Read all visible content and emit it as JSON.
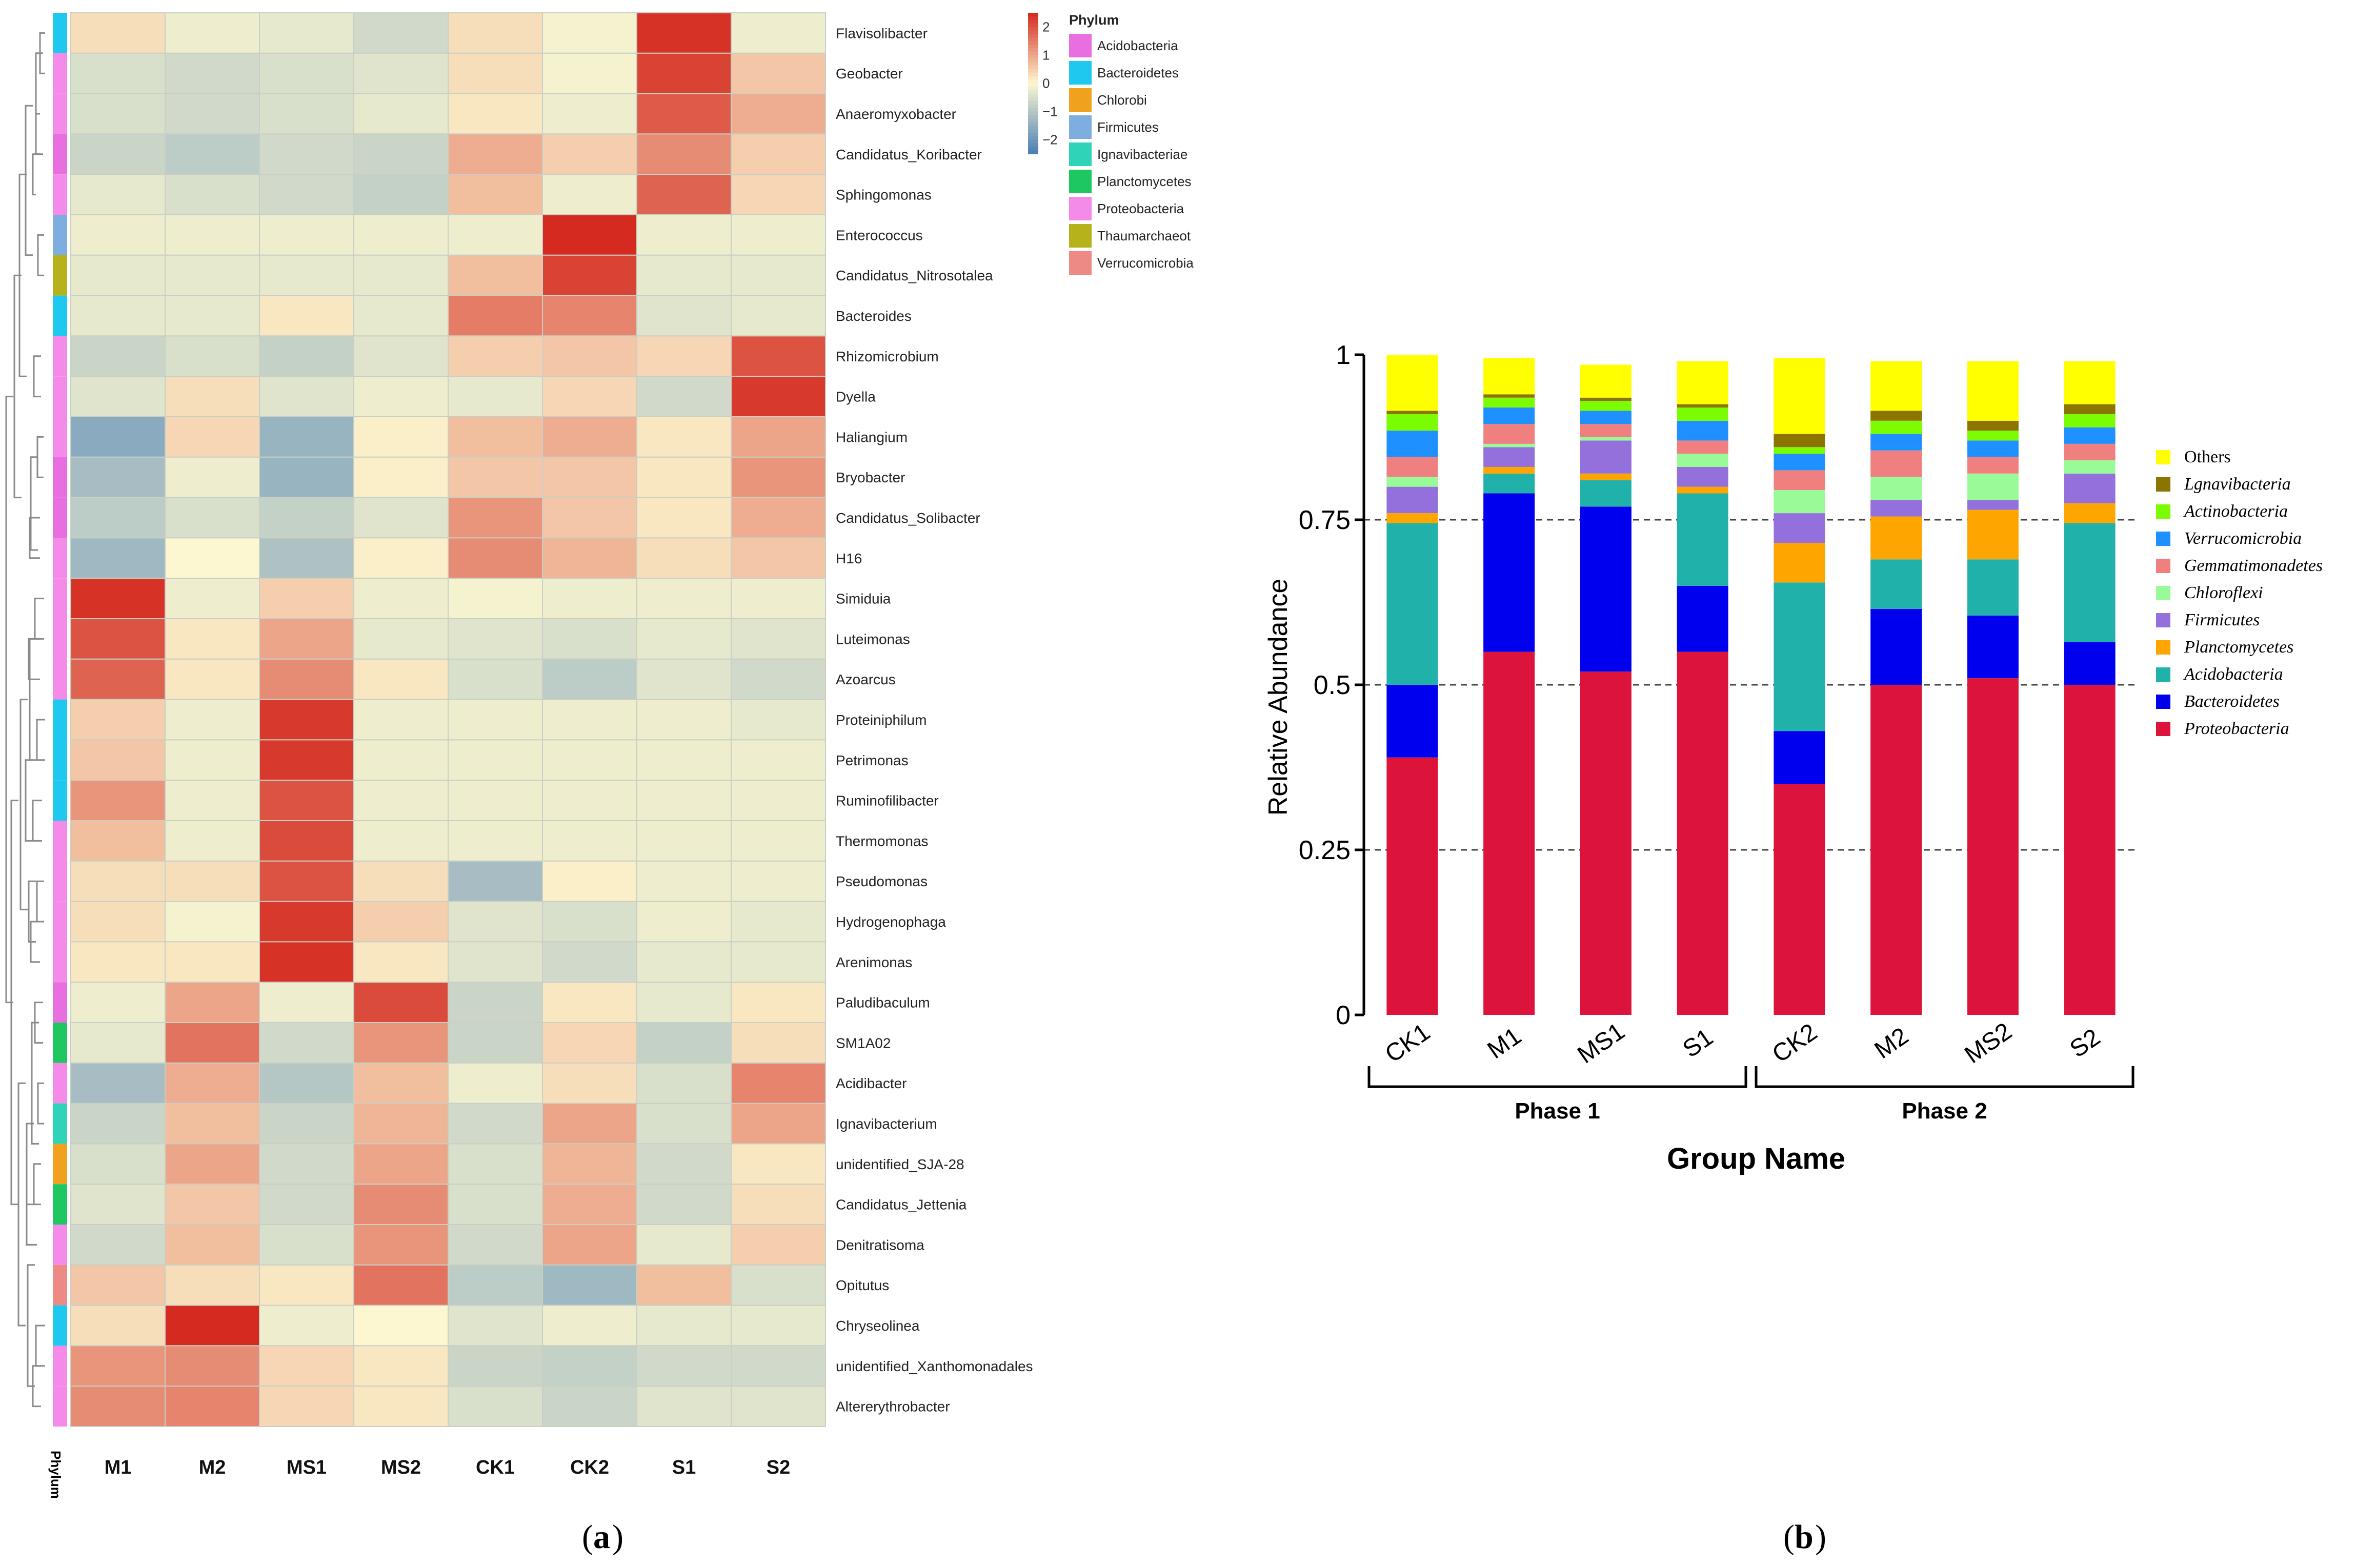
{
  "panel_labels": {
    "a": "a",
    "b": "b"
  },
  "colors": {
    "heat_low": "#4a7fb5",
    "heat_mid": "#fcf7d0",
    "heat_high": "#d42a1f"
  },
  "chart_data": [
    {
      "type": "heatmap",
      "columns": [
        "M1",
        "M2",
        "MS1",
        "MS2",
        "CK1",
        "CK2",
        "S1",
        "S2"
      ],
      "rows": [
        "Flavisolibacter",
        "Geobacter",
        "Anaeromyxobacter",
        "Candidatus_Koribacter",
        "Sphingomonas",
        "Enterococcus",
        "Candidatus_Nitrosotalea",
        "Bacteroides",
        "Rhizomicrobium",
        "Dyella",
        "Haliangium",
        "Bryobacter",
        "Candidatus_Solibacter",
        "H16",
        "Simiduia",
        "Luteimonas",
        "Azoarcus",
        "Proteiniphilum",
        "Petrimonas",
        "Ruminofilibacter",
        "Thermomonas",
        "Pseudomonas",
        "Hydrogenophaga",
        "Arenimonas",
        "Paludibaculum",
        "SM1A02",
        "Acidibacter",
        "Ignavibacterium",
        "unidentified_SJA-28",
        "Candidatus_Jettenia",
        "Denitratisoma",
        "Opitutus",
        "Chryseolinea",
        "unidentified_Xanthomonadales",
        "Altererythrobacter"
      ],
      "row_phylum": [
        "Bacteroidetes",
        "Proteobacteria",
        "Proteobacteria",
        "Acidobacteria",
        "Proteobacteria",
        "Firmicutes",
        "Thaumarchaeota",
        "Bacteroidetes",
        "Proteobacteria",
        "Proteobacteria",
        "Proteobacteria",
        "Acidobacteria",
        "Acidobacteria",
        "Proteobacteria",
        "Proteobacteria",
        "Proteobacteria",
        "Proteobacteria",
        "Bacteroidetes",
        "Bacteroidetes",
        "Bacteroidetes",
        "Proteobacteria",
        "Proteobacteria",
        "Proteobacteria",
        "Proteobacteria",
        "Acidobacteria",
        "Planctomycetes",
        "Proteobacteria",
        "Ignavibacteriae",
        "Chlorobi",
        "Planctomycetes",
        "Proteobacteria",
        "Verrucomicrobia",
        "Bacteroidetes",
        "Proteobacteria",
        "Proteobacteria"
      ],
      "values": [
        [
          0.3,
          -0.2,
          -0.3,
          -0.6,
          0.3,
          -0.1,
          2.4,
          -0.2
        ],
        [
          -0.5,
          -0.6,
          -0.5,
          -0.4,
          0.3,
          -0.1,
          2.2,
          0.6
        ],
        [
          -0.5,
          -0.6,
          -0.5,
          -0.3,
          0.2,
          -0.2,
          1.9,
          0.9
        ],
        [
          -0.7,
          -0.9,
          -0.6,
          -0.7,
          0.9,
          0.5,
          1.3,
          0.5
        ],
        [
          -0.3,
          -0.5,
          -0.6,
          -0.8,
          0.7,
          -0.2,
          1.8,
          0.4
        ],
        [
          -0.2,
          -0.2,
          -0.2,
          -0.2,
          -0.2,
          2.5,
          -0.2,
          -0.2
        ],
        [
          -0.3,
          -0.3,
          -0.3,
          -0.3,
          0.7,
          2.2,
          -0.3,
          -0.3
        ],
        [
          -0.3,
          -0.3,
          0.2,
          -0.3,
          1.5,
          1.4,
          -0.4,
          -0.3
        ],
        [
          -0.7,
          -0.5,
          -0.8,
          -0.4,
          0.5,
          0.6,
          0.4,
          2.0
        ],
        [
          -0.4,
          0.3,
          -0.4,
          -0.2,
          -0.3,
          0.4,
          -0.6,
          2.3
        ],
        [
          -1.6,
          0.4,
          -1.4,
          0.1,
          0.7,
          0.9,
          0.2,
          1.0
        ],
        [
          -1.2,
          -0.2,
          -1.4,
          0.1,
          0.6,
          0.6,
          0.2,
          1.2
        ],
        [
          -0.9,
          -0.5,
          -0.8,
          -0.4,
          1.2,
          0.6,
          0.2,
          0.9
        ],
        [
          -1.3,
          0.0,
          -1.1,
          0.1,
          1.3,
          0.8,
          0.3,
          0.6
        ],
        [
          2.4,
          -0.2,
          0.5,
          -0.2,
          -0.1,
          -0.2,
          -0.2,
          -0.2
        ],
        [
          2.0,
          0.2,
          1.0,
          -0.3,
          -0.4,
          -0.5,
          -0.3,
          -0.4
        ],
        [
          1.8,
          0.2,
          1.3,
          0.2,
          -0.5,
          -0.9,
          -0.4,
          -0.6
        ],
        [
          0.5,
          -0.2,
          2.3,
          -0.2,
          -0.2,
          -0.2,
          -0.2,
          -0.3
        ],
        [
          0.6,
          -0.2,
          2.3,
          -0.2,
          -0.2,
          -0.2,
          -0.2,
          -0.2
        ],
        [
          1.2,
          -0.2,
          2.0,
          -0.2,
          -0.2,
          -0.2,
          -0.2,
          -0.2
        ],
        [
          0.7,
          -0.2,
          2.1,
          -0.2,
          -0.2,
          -0.2,
          -0.2,
          -0.2
        ],
        [
          0.3,
          0.3,
          2.0,
          0.3,
          -1.2,
          0.1,
          -0.2,
          -0.2
        ],
        [
          0.3,
          -0.1,
          2.3,
          0.5,
          -0.4,
          -0.5,
          -0.2,
          -0.3
        ],
        [
          0.2,
          0.2,
          2.4,
          0.2,
          -0.4,
          -0.6,
          -0.3,
          -0.3
        ],
        [
          -0.2,
          1.0,
          -0.2,
          2.1,
          -0.7,
          0.2,
          -0.3,
          0.2
        ],
        [
          -0.3,
          1.6,
          -0.6,
          1.2,
          -0.7,
          0.4,
          -0.8,
          0.3
        ],
        [
          -1.2,
          0.9,
          -1.0,
          0.7,
          -0.2,
          0.3,
          -0.5,
          1.4
        ],
        [
          -0.7,
          0.7,
          -0.7,
          0.8,
          -0.6,
          1.0,
          -0.5,
          1.0
        ],
        [
          -0.5,
          1.0,
          -0.6,
          1.0,
          -0.5,
          0.8,
          -0.6,
          0.2
        ],
        [
          -0.4,
          0.6,
          -0.6,
          1.3,
          -0.5,
          0.9,
          -0.6,
          0.3
        ],
        [
          -0.6,
          0.7,
          -0.5,
          1.2,
          -0.6,
          1.0,
          -0.3,
          0.5
        ],
        [
          0.6,
          0.3,
          0.2,
          1.6,
          -0.9,
          -1.3,
          0.7,
          -0.5
        ],
        [
          0.3,
          2.5,
          -0.2,
          0.0,
          -0.4,
          -0.2,
          -0.3,
          -0.3
        ],
        [
          1.2,
          1.3,
          0.4,
          0.2,
          -0.7,
          -0.8,
          -0.6,
          -0.6
        ],
        [
          1.3,
          1.4,
          0.4,
          0.2,
          -0.5,
          -0.7,
          -0.4,
          -0.4
        ]
      ],
      "legend_ticks": [
        "2",
        "1",
        "0",
        "−1",
        "−2"
      ],
      "legend_values": [
        2,
        1,
        0,
        -1,
        -2
      ],
      "vrange": [
        -2.5,
        2.5
      ],
      "phylum_legend": {
        "title": "Phylum",
        "items": [
          {
            "name": "Acidobacteria",
            "color": "#e86fe0"
          },
          {
            "name": "Bacteroidetes",
            "color": "#1ec8ef"
          },
          {
            "name": "Chlorobi",
            "color": "#f0a21e"
          },
          {
            "name": "Firmicutes",
            "color": "#7eaee0"
          },
          {
            "name": "Ignavibacteriae",
            "color": "#2fd3b7"
          },
          {
            "name": "Planctomycetes",
            "color": "#1fc761"
          },
          {
            "name": "Proteobacteria",
            "color": "#f58be8"
          },
          {
            "name": "Thaumarchaeot",
            "color": "#b5b21b"
          },
          {
            "name": "Verrucomicrobia",
            "color": "#ee8a86"
          }
        ]
      },
      "phylum_axis_label": "Phylum"
    },
    {
      "type": "bar",
      "stacked": true,
      "categories": [
        "CK1",
        "M1",
        "MS1",
        "S1",
        "CK2",
        "M2",
        "MS2",
        "S2"
      ],
      "groups": [
        {
          "name": "Phase 1",
          "members": [
            "CK1",
            "M1",
            "MS1",
            "S1"
          ]
        },
        {
          "name": "Phase 2",
          "members": [
            "CK2",
            "M2",
            "MS2",
            "S2"
          ]
        }
      ],
      "xlabel": "Group Name",
      "ylabel": "Relative Abundance",
      "ylim": [
        0,
        1
      ],
      "yticks": [
        "0",
        "0.25",
        "0.5",
        "0.75",
        "1"
      ],
      "ytick_values": [
        0,
        0.25,
        0.5,
        0.75,
        1
      ],
      "grid": "dashed at 0.25, 0.5, 0.75",
      "legend_position": "right",
      "series": [
        {
          "name": "Proteobacteria",
          "color": "#dc143c",
          "values": [
            0.39,
            0.55,
            0.52,
            0.55,
            0.35,
            0.5,
            0.51,
            0.5
          ]
        },
        {
          "name": "Bacteroidetes",
          "color": "#0000ee",
          "values": [
            0.11,
            0.24,
            0.25,
            0.1,
            0.08,
            0.115,
            0.095,
            0.065
          ]
        },
        {
          "name": "Acidobacteria",
          "color": "#20b2aa",
          "values": [
            0.245,
            0.03,
            0.04,
            0.14,
            0.225,
            0.075,
            0.085,
            0.18
          ]
        },
        {
          "name": "Planctomycetes",
          "color": "#ffa500",
          "values": [
            0.015,
            0.01,
            0.01,
            0.01,
            0.06,
            0.065,
            0.075,
            0.03
          ]
        },
        {
          "name": "Firmicutes",
          "color": "#9370db",
          "values": [
            0.04,
            0.03,
            0.05,
            0.03,
            0.045,
            0.025,
            0.015,
            0.045
          ]
        },
        {
          "name": "Chloroflexi",
          "color": "#98fb98",
          "values": [
            0.015,
            0.005,
            0.005,
            0.02,
            0.035,
            0.035,
            0.04,
            0.02
          ]
        },
        {
          "name": "Gemmatimonadetes",
          "color": "#f08080",
          "values": [
            0.03,
            0.03,
            0.02,
            0.02,
            0.03,
            0.04,
            0.025,
            0.025
          ]
        },
        {
          "name": "Verrucomicrobia",
          "color": "#1e90ff",
          "values": [
            0.04,
            0.025,
            0.02,
            0.03,
            0.025,
            0.025,
            0.025,
            0.025
          ]
        },
        {
          "name": "Actinobacteria",
          "color": "#7cfc00",
          "values": [
            0.025,
            0.015,
            0.015,
            0.02,
            0.01,
            0.02,
            0.015,
            0.02
          ]
        },
        {
          "name": "Lgnavibacteria",
          "color": "#8b7500",
          "values": [
            0.005,
            0.005,
            0.005,
            0.005,
            0.02,
            0.015,
            0.015,
            0.015
          ]
        },
        {
          "name": "Others",
          "color": "#ffff00",
          "values": [
            0.085,
            0.055,
            0.05,
            0.065,
            0.115,
            0.075,
            0.09,
            0.065
          ]
        }
      ]
    }
  ]
}
